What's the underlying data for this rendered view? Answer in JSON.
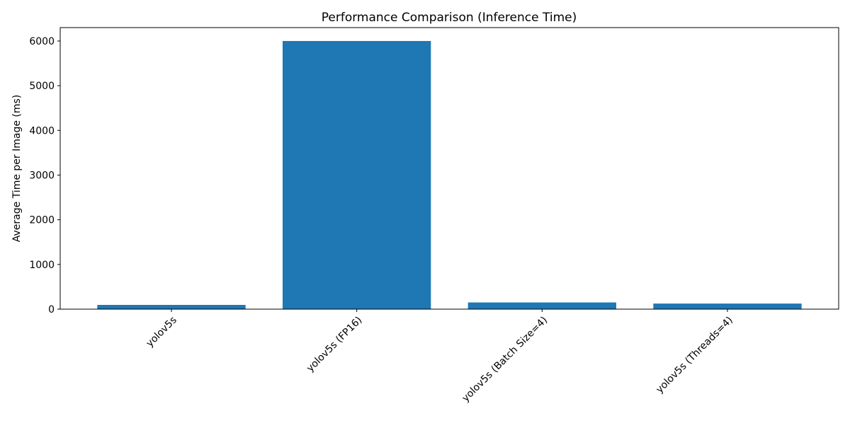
{
  "chart_data": {
    "type": "bar",
    "title": "Performance Comparison (Inference Time)",
    "xlabel": "",
    "ylabel": "Average Time per Image (ms)",
    "categories": [
      "yolov5s",
      "yolov5s (FP16)",
      "yolov5s (Batch Size=4)",
      "yolov5s (Threads=4)"
    ],
    "values": [
      95,
      6000,
      150,
      125
    ],
    "ylim": [
      0,
      6300
    ],
    "yticks": [
      0,
      1000,
      2000,
      3000,
      4000,
      5000,
      6000
    ],
    "bar_color": "#1f77b4",
    "grid": false,
    "legend": "none",
    "xtick_rotation": 45
  }
}
